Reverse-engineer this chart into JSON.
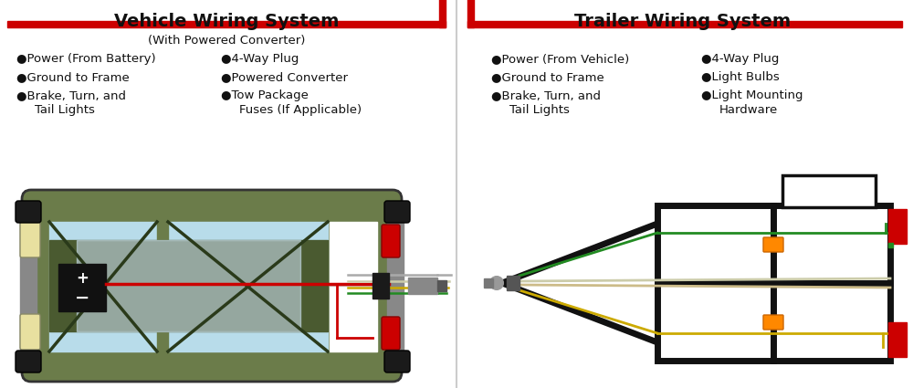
{
  "bg_color": "#ffffff",
  "divider_color": "#cccccc",
  "red_border": "#cc0000",
  "title_left": "Vehicle Wiring System",
  "title_right": "Trailer Wiring System",
  "subtitle_left": "(With Powered Converter)",
  "car_body_color": "#6b7c4a",
  "car_body_color2": "#4a5a30",
  "car_frame_color": "#555555",
  "car_window_color": "#b8dcea",
  "car_tire_color": "#1a1a1a",
  "car_light_cream": "#e8e0a0",
  "car_red_light": "#cc0000",
  "car_gray_panel": "#888888",
  "wire_red": "#cc0000",
  "wire_green": "#228B22",
  "wire_yellow": "#ccaa00",
  "wire_white": "#ccccaa",
  "wire_black": "#111111",
  "converter_box": "#dddddd",
  "harness_box": "#222222",
  "plug_gray": "#888888",
  "trailer_frame_color": "#111111",
  "orange_marker": "#ff8800",
  "trailer_red_light": "#cc0000",
  "trailer_green_light": "#228B22",
  "coupler_color": "#999999"
}
